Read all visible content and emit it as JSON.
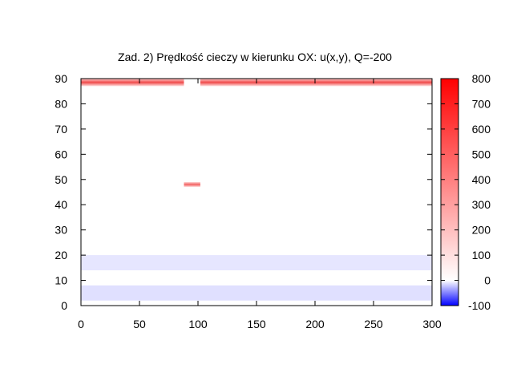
{
  "chart_data": {
    "type": "heatmap",
    "title": "Zad. 2) Prędkość cieczy w kierunku OX: u(x,y), Q=-200",
    "xlabel": "",
    "ylabel": "",
    "xlim": [
      0,
      300
    ],
    "ylim": [
      0,
      90
    ],
    "x_ticks": [
      "0",
      "50",
      "100",
      "150",
      "200",
      "250",
      "300"
    ],
    "y_ticks": [
      "0",
      "10",
      "20",
      "30",
      "40",
      "50",
      "60",
      "70",
      "80",
      "90"
    ],
    "colorbar": {
      "range": [
        -100,
        800
      ],
      "ticks": [
        "-100",
        "0",
        "100",
        "200",
        "300",
        "400",
        "500",
        "600",
        "700",
        "800"
      ],
      "colors": {
        "min": "#0000ff",
        "zero": "#ffffff",
        "max": "#ff0000"
      }
    },
    "field_features": [
      {
        "feature": "upper-left wall band",
        "x_range": [
          0,
          88
        ],
        "y_range": [
          87,
          90
        ],
        "value": 600
      },
      {
        "feature": "upper-right wall band",
        "x_range": [
          102,
          300
        ],
        "y_range": [
          87,
          90
        ],
        "value": 600
      },
      {
        "feature": "obstacle tip band",
        "x_range": [
          88,
          102
        ],
        "y_range": [
          47,
          49
        ],
        "value": 550
      },
      {
        "feature": "lower faint band",
        "x_range": [
          0,
          300
        ],
        "y_range": [
          14,
          20
        ],
        "value": -10
      },
      {
        "feature": "bottom faint band",
        "x_range": [
          0,
          300
        ],
        "y_range": [
          2,
          8
        ],
        "value": -12
      }
    ],
    "grid": false,
    "legend": "none"
  }
}
